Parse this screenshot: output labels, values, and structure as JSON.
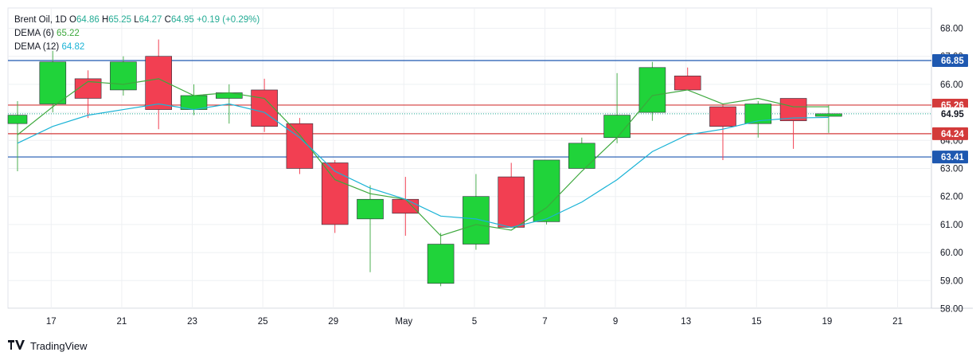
{
  "header": {
    "symbol": "Brent Oil, 1D",
    "open_label": "O",
    "open": "64.86",
    "high_label": "H",
    "high": "65.25",
    "low_label": "L",
    "low": "64.27",
    "close_label": "C",
    "close": "64.95",
    "change": "+0.19 (+0.29%)",
    "dema6_label": "DEMA (6)",
    "dema6_value": "65.22",
    "dema12_label": "DEMA (12)",
    "dema12_value": "64.82"
  },
  "brand": {
    "name": "TradingView"
  },
  "colors": {
    "up": "#20d33a",
    "down": "#f23f52",
    "wick": "#4caf50",
    "dema6": "#3ca83c",
    "dema12": "#1ab3d6",
    "blue_line": "#1e58b0",
    "red_line": "#d33a3a",
    "grid": "#eef0f3"
  },
  "chart_data": {
    "type": "candlestick",
    "ylim": [
      58,
      68.5
    ],
    "y_ticks": [
      58.0,
      59.0,
      60.0,
      61.0,
      62.0,
      63.0,
      64.0,
      65.0,
      66.0,
      67.0,
      68.0
    ],
    "y_tick_labels": [
      "58.00",
      "59.00",
      "60.00",
      "61.00",
      "62.00",
      "63.00",
      "64.00",
      "65.00",
      "66.00",
      "67.00",
      "68.00"
    ],
    "x_ticks": [
      "17",
      "21",
      "23",
      "25",
      "29",
      "May",
      "5",
      "7",
      "9",
      "13",
      "15",
      "19",
      "21"
    ],
    "candles": [
      {
        "o": 64.6,
        "h": 65.4,
        "l": 62.9,
        "c": 64.9
      },
      {
        "o": 65.3,
        "h": 67.2,
        "l": 65.0,
        "c": 66.8
      },
      {
        "o": 66.2,
        "h": 66.5,
        "l": 64.8,
        "c": 65.5
      },
      {
        "o": 65.8,
        "h": 67.0,
        "l": 65.6,
        "c": 66.8
      },
      {
        "o": 67.0,
        "h": 67.6,
        "l": 64.4,
        "c": 65.1
      },
      {
        "o": 65.1,
        "h": 66.0,
        "l": 64.9,
        "c": 65.6
      },
      {
        "o": 65.5,
        "h": 66.0,
        "l": 64.6,
        "c": 65.7
      },
      {
        "o": 65.8,
        "h": 66.2,
        "l": 64.3,
        "c": 64.5
      },
      {
        "o": 64.6,
        "h": 64.8,
        "l": 62.8,
        "c": 63.0
      },
      {
        "o": 63.2,
        "h": 63.3,
        "l": 60.7,
        "c": 61.0
      },
      {
        "o": 61.2,
        "h": 62.4,
        "l": 59.3,
        "c": 61.9
      },
      {
        "o": 61.9,
        "h": 62.7,
        "l": 60.6,
        "c": 61.4
      },
      {
        "o": 58.9,
        "h": 60.7,
        "l": 58.8,
        "c": 60.3
      },
      {
        "o": 60.3,
        "h": 62.8,
        "l": 60.1,
        "c": 62.0
      },
      {
        "o": 62.7,
        "h": 63.2,
        "l": 60.9,
        "c": 60.9
      },
      {
        "o": 61.1,
        "h": 63.3,
        "l": 61.0,
        "c": 63.3
      },
      {
        "o": 63.0,
        "h": 64.1,
        "l": 63.0,
        "c": 63.9
      },
      {
        "o": 64.1,
        "h": 66.4,
        "l": 63.9,
        "c": 64.9
      },
      {
        "o": 65.0,
        "h": 66.8,
        "l": 64.7,
        "c": 66.6
      },
      {
        "o": 66.3,
        "h": 66.6,
        "l": 65.8,
        "c": 65.8
      },
      {
        "o": 65.2,
        "h": 65.3,
        "l": 63.3,
        "c": 64.5
      },
      {
        "o": 64.6,
        "h": 65.4,
        "l": 64.1,
        "c": 65.3
      },
      {
        "o": 65.5,
        "h": 65.5,
        "l": 63.7,
        "c": 64.7
      },
      {
        "o": 64.86,
        "h": 65.25,
        "l": 64.27,
        "c": 64.95
      }
    ],
    "series": [
      {
        "name": "DEMA (6)",
        "values": [
          64.2,
          65.2,
          66.1,
          66.0,
          66.2,
          65.6,
          65.7,
          65.5,
          64.2,
          62.6,
          62.1,
          61.9,
          60.6,
          61.0,
          60.8,
          61.6,
          62.9,
          64.1,
          65.6,
          65.8,
          65.3,
          65.5,
          65.2,
          65.2
        ]
      },
      {
        "name": "DEMA (12)",
        "values": [
          63.9,
          64.5,
          64.9,
          65.1,
          65.3,
          65.1,
          65.3,
          65.0,
          64.1,
          62.9,
          62.3,
          61.9,
          61.3,
          61.2,
          60.9,
          61.2,
          61.8,
          62.6,
          63.6,
          64.2,
          64.4,
          64.7,
          64.8,
          64.82
        ]
      }
    ],
    "h_lines": [
      {
        "value": 66.85,
        "label": "66.85",
        "kind": "blue"
      },
      {
        "value": 65.26,
        "label": "65.26",
        "kind": "red"
      },
      {
        "value": 64.24,
        "label": "64.24",
        "kind": "red"
      },
      {
        "value": 63.41,
        "label": "63.41",
        "kind": "blue"
      }
    ],
    "last_price": {
      "value": 64.95,
      "label": "64.95"
    }
  }
}
